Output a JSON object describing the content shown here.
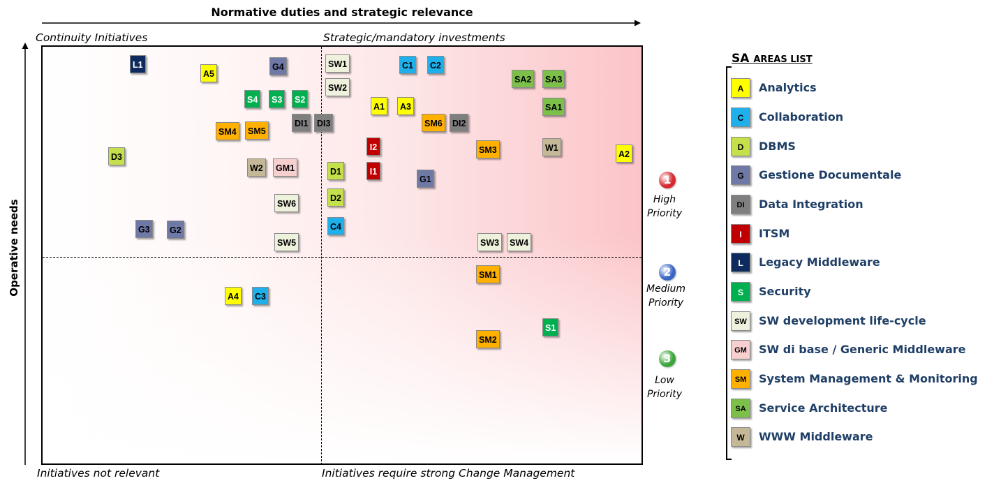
{
  "axes": {
    "x_title": "Normative duties and strategic relevance",
    "y_title": "Operative needs"
  },
  "corners": {
    "top_left": "Continuity Initiatives",
    "top_right": "Strategic/mandatory investments",
    "bottom_left": "Initiatives not relevant",
    "bottom_right": "Initiatives require strong Change  Management"
  },
  "priorities": [
    {
      "number": "1",
      "label_line1": "High",
      "label_line2": "Priority",
      "color": "#d6282e"
    },
    {
      "number": "2",
      "label_line1": "Medium",
      "label_line2": "Priority",
      "color": "#3a66c4"
    },
    {
      "number": "3",
      "label_line1": "Low",
      "label_line2": "Priority",
      "color": "#3aa63a"
    }
  ],
  "legend": {
    "title_big": "SA",
    "title_small": "AREAS LIST",
    "items": [
      {
        "code": "A",
        "name": "Analytics",
        "color": "#ffff00",
        "text_color": "#000000"
      },
      {
        "code": "C",
        "name": "Collaboration",
        "color": "#1fb0ec",
        "text_color": "#000000"
      },
      {
        "code": "D",
        "name": "DBMS",
        "color": "#c4e04a",
        "text_color": "#000000"
      },
      {
        "code": "G",
        "name": "Gestione Documentale",
        "color": "#6f79a6",
        "text_color": "#000000"
      },
      {
        "code": "DI",
        "name": "Data Integration",
        "color": "#7f7f7f",
        "text_color": "#000000"
      },
      {
        "code": "I",
        "name": "ITSM",
        "color": "#c00000",
        "text_color": "#ffffff"
      },
      {
        "code": "L",
        "name": "Legacy Middleware",
        "color": "#0d2b5e",
        "text_color": "#ffffff"
      },
      {
        "code": "S",
        "name": "Security",
        "color": "#00b050",
        "text_color": "#ffffff"
      },
      {
        "code": "SW",
        "name": "SW development life-cycle",
        "color": "#eef2dc",
        "text_color": "#000000"
      },
      {
        "code": "GM",
        "name": "SW di base / Generic Middleware",
        "color": "#f8cfcf",
        "text_color": "#000000"
      },
      {
        "code": "SM",
        "name": "System Management & Monitoring",
        "color": "#ffb000",
        "text_color": "#000000"
      },
      {
        "code": "SA",
        "name": "Service Architecture",
        "color": "#7cc04a",
        "text_color": "#000000"
      },
      {
        "code": "W",
        "name": "WWW Middleware",
        "color": "#c4b896",
        "text_color": "#000000"
      }
    ]
  },
  "initiatives": [
    {
      "id": "L1",
      "area": "L"
    },
    {
      "id": "A5",
      "area": "A"
    },
    {
      "id": "G4",
      "area": "G"
    },
    {
      "id": "SW1",
      "area": "SW"
    },
    {
      "id": "SW2",
      "area": "SW"
    },
    {
      "id": "C1",
      "area": "C"
    },
    {
      "id": "C2",
      "area": "C"
    },
    {
      "id": "SA2",
      "area": "SA"
    },
    {
      "id": "SA3",
      "area": "SA"
    },
    {
      "id": "SA1",
      "area": "SA"
    },
    {
      "id": "S4",
      "area": "S"
    },
    {
      "id": "S3",
      "area": "S"
    },
    {
      "id": "S2",
      "area": "S"
    },
    {
      "id": "A1",
      "area": "A"
    },
    {
      "id": "A3",
      "area": "A"
    },
    {
      "id": "DI1",
      "area": "DI"
    },
    {
      "id": "DI3",
      "area": "DI"
    },
    {
      "id": "DI2",
      "area": "DI"
    },
    {
      "id": "SM4",
      "area": "SM"
    },
    {
      "id": "SM5",
      "area": "SM"
    },
    {
      "id": "SM6",
      "area": "SM"
    },
    {
      "id": "I2",
      "area": "I"
    },
    {
      "id": "I1",
      "area": "I"
    },
    {
      "id": "SM3",
      "area": "SM"
    },
    {
      "id": "W1",
      "area": "W"
    },
    {
      "id": "A2",
      "area": "A"
    },
    {
      "id": "D3",
      "area": "D"
    },
    {
      "id": "W2",
      "area": "W"
    },
    {
      "id": "GM1",
      "area": "GM"
    },
    {
      "id": "D1",
      "area": "D"
    },
    {
      "id": "G1",
      "area": "G"
    },
    {
      "id": "D2",
      "area": "D"
    },
    {
      "id": "SW6",
      "area": "SW"
    },
    {
      "id": "G3",
      "area": "G"
    },
    {
      "id": "G2",
      "area": "G"
    },
    {
      "id": "C4",
      "area": "C"
    },
    {
      "id": "SW5",
      "area": "SW"
    },
    {
      "id": "SW3",
      "area": "SW"
    },
    {
      "id": "SW4",
      "area": "SW"
    },
    {
      "id": "SM1",
      "area": "SM"
    },
    {
      "id": "A4",
      "area": "A"
    },
    {
      "id": "C3",
      "area": "C"
    },
    {
      "id": "S1",
      "area": "S"
    },
    {
      "id": "SM2",
      "area": "SM"
    }
  ]
}
